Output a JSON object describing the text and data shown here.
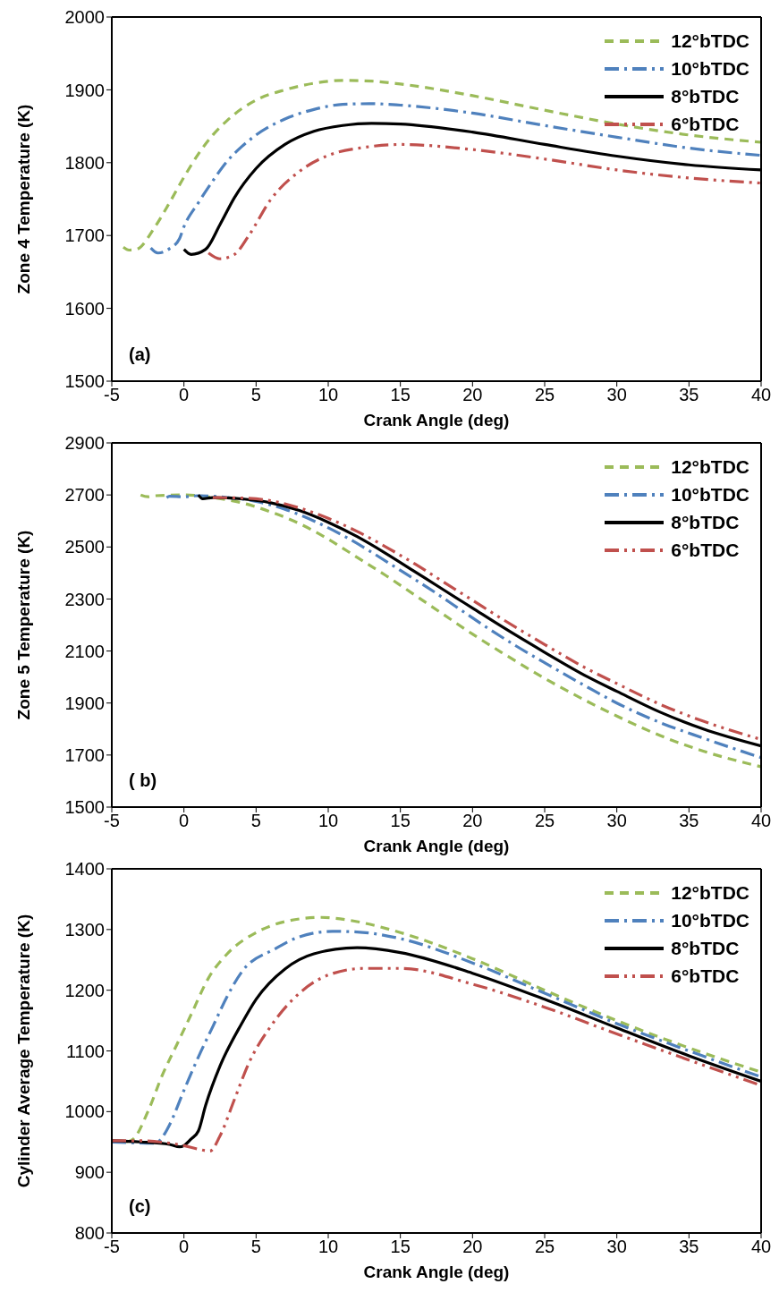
{
  "chart_data": [
    {
      "type": "line",
      "xlabel": "Crank Angle (deg)",
      "ylabel": "Zone 4 Temperature (K)",
      "xlim": [
        -5,
        40
      ],
      "xticks": [
        -5,
        0,
        5,
        10,
        15,
        20,
        25,
        30,
        35,
        40
      ],
      "ylim": [
        1500,
        2000
      ],
      "yticks": [
        1500,
        1600,
        1700,
        1800,
        1900,
        2000
      ],
      "legend": "top right",
      "marker": "none",
      "annotations": [
        "(a)"
      ],
      "series": [
        {
          "name": "12°bTDC",
          "color": "#9bbb59",
          "line_style": "dashed",
          "x": [
            -4.2,
            -3.8,
            -3.3,
            -2,
            -1,
            0,
            1,
            2,
            3,
            4,
            5,
            7,
            9,
            11,
            13,
            15,
            20,
            25,
            30,
            35,
            40
          ],
          "values": [
            1684,
            1680,
            1681,
            1712,
            1745,
            1780,
            1812,
            1838,
            1858,
            1874,
            1886,
            1900,
            1909,
            1913,
            1912,
            1908,
            1892,
            1872,
            1853,
            1838,
            1828
          ]
        },
        {
          "name": "10°bTDC",
          "color": "#4f81bd",
          "line_style": "dashdot",
          "x": [
            -2.3,
            -1.8,
            -1,
            -0.3,
            0,
            1,
            2,
            3,
            4,
            5,
            7,
            9,
            11,
            13,
            15,
            20,
            25,
            30,
            35,
            40
          ],
          "values": [
            1683,
            1676,
            1682,
            1696,
            1712,
            1745,
            1775,
            1802,
            1822,
            1838,
            1860,
            1873,
            1880,
            1881,
            1879,
            1868,
            1851,
            1835,
            1820,
            1810
          ]
        },
        {
          "name": "8°bTDC",
          "color": "#000000",
          "line_style": "solid",
          "x": [
            0,
            0.5,
            1.5,
            2.5,
            3.5,
            5,
            7,
            9,
            11,
            13,
            15,
            20,
            25,
            30,
            35,
            40
          ],
          "values": [
            1681,
            1674,
            1681,
            1715,
            1752,
            1792,
            1825,
            1843,
            1851,
            1854,
            1853,
            1842,
            1825,
            1809,
            1797,
            1790
          ]
        },
        {
          "name": "6°bTDC",
          "color": "#c0504d",
          "line_style": "dashdotdot",
          "x": [
            1.7,
            2.5,
            3.5,
            4.5,
            6,
            8,
            10,
            12.5,
            15,
            20,
            25,
            30,
            35,
            40
          ],
          "values": [
            1676,
            1668,
            1674,
            1700,
            1749,
            1788,
            1810,
            1821,
            1825,
            1818,
            1805,
            1790,
            1779,
            1772
          ]
        }
      ]
    },
    {
      "type": "line",
      "xlabel": "Crank Angle (deg)",
      "ylabel": "Zone 5 Temperature (K)",
      "xlim": [
        -5,
        40
      ],
      "xticks": [
        -5,
        0,
        5,
        10,
        15,
        20,
        25,
        30,
        35,
        40
      ],
      "ylim": [
        1500,
        2900
      ],
      "yticks": [
        1500,
        1700,
        1900,
        2100,
        2300,
        2500,
        2700,
        2900
      ],
      "legend": "top right",
      "marker": "none",
      "annotations": [
        "( b)"
      ],
      "series": [
        {
          "name": "12°bTDC",
          "color": "#9bbb59",
          "line_style": "dashed",
          "x": [
            -3,
            -2.5,
            -2,
            0,
            2,
            4,
            6,
            8,
            10,
            12,
            14,
            16,
            18,
            20,
            22,
            25,
            28,
            30,
            33,
            36,
            40
          ],
          "values": [
            2700,
            2693,
            2697,
            2700,
            2690,
            2670,
            2635,
            2590,
            2530,
            2460,
            2390,
            2315,
            2240,
            2165,
            2095,
            1995,
            1905,
            1850,
            1775,
            1715,
            1655
          ]
        },
        {
          "name": "10°bTDC",
          "color": "#4f81bd",
          "line_style": "dashdot",
          "x": [
            -1.2,
            -1,
            0,
            1,
            3,
            5,
            7,
            9,
            11,
            13,
            15,
            17,
            19,
            21,
            23,
            25,
            28,
            30,
            33,
            36,
            40
          ],
          "values": [
            2690,
            2695,
            2693,
            2697,
            2690,
            2675,
            2645,
            2600,
            2545,
            2480,
            2410,
            2340,
            2265,
            2190,
            2120,
            2055,
            1960,
            1900,
            1825,
            1765,
            1690
          ]
        },
        {
          "name": "8°bTDC",
          "color": "#000000",
          "line_style": "solid",
          "x": [
            1,
            1.3,
            2,
            4,
            6,
            8,
            10,
            12,
            14,
            16,
            18,
            20,
            22,
            25,
            28,
            30,
            33,
            36,
            40
          ],
          "values": [
            2700,
            2685,
            2690,
            2685,
            2670,
            2640,
            2595,
            2540,
            2475,
            2405,
            2335,
            2265,
            2195,
            2095,
            2000,
            1945,
            1865,
            1800,
            1735
          ]
        },
        {
          "name": "6°bTDC",
          "color": "#c0504d",
          "line_style": "dashdotdot",
          "x": [
            2,
            4,
            6,
            8,
            10,
            12,
            14,
            16,
            18,
            20,
            22,
            25,
            28,
            30,
            33,
            36,
            40
          ],
          "values": [
            2690,
            2688,
            2678,
            2650,
            2610,
            2560,
            2500,
            2435,
            2365,
            2295,
            2225,
            2125,
            2030,
            1975,
            1895,
            1830,
            1760
          ]
        }
      ]
    },
    {
      "type": "line",
      "xlabel": "Crank Angle (deg)",
      "ylabel": "Cylinder Average Temperature (K)",
      "xlim": [
        -5,
        40
      ],
      "xticks": [
        -5,
        0,
        5,
        10,
        15,
        20,
        25,
        30,
        35,
        40
      ],
      "ylim": [
        800,
        1400
      ],
      "yticks": [
        800,
        900,
        1000,
        1100,
        1200,
        1300,
        1400
      ],
      "legend": "top right",
      "marker": "none",
      "annotations": [
        "(c)"
      ],
      "series": [
        {
          "name": "12°bTDC",
          "color": "#9bbb59",
          "line_style": "dashed",
          "x": [
            -4,
            -3.5,
            -2.5,
            -1.5,
            -0.5,
            0.5,
            1.7,
            3,
            5,
            7,
            9.5,
            12,
            15,
            20,
            25,
            30,
            35,
            40
          ],
          "values": [
            950,
            955,
            1000,
            1060,
            1110,
            1160,
            1220,
            1260,
            1295,
            1313,
            1320,
            1313,
            1295,
            1252,
            1200,
            1150,
            1105,
            1065
          ]
        },
        {
          "name": "10°bTDC",
          "color": "#4f81bd",
          "line_style": "dashdot",
          "x": [
            -5,
            -2,
            -1.3,
            -1,
            0,
            1,
            2,
            3,
            4,
            6.3,
            8,
            10.3,
            12,
            15,
            20,
            25,
            30,
            35,
            40
          ],
          "values": [
            950,
            948,
            965,
            978,
            1035,
            1090,
            1140,
            1190,
            1230,
            1268,
            1288,
            1297,
            1296,
            1285,
            1245,
            1195,
            1145,
            1100,
            1057
          ]
        },
        {
          "name": "8°bTDC",
          "color": "#000000",
          "line_style": "solid",
          "x": [
            -5,
            -3,
            -1,
            -0.3,
            0,
            0.5,
            1,
            1.5,
            2.5,
            4,
            5,
            7,
            9,
            12,
            15,
            20,
            25,
            30,
            35,
            40
          ],
          "values": [
            952,
            950,
            946,
            942,
            944,
            955,
            968,
            1010,
            1075,
            1145,
            1185,
            1235,
            1260,
            1270,
            1262,
            1228,
            1185,
            1138,
            1092,
            1050
          ]
        },
        {
          "name": "6°bTDC",
          "color": "#c0504d",
          "line_style": "dashdotdot",
          "x": [
            -5,
            -3,
            -1,
            0,
            1,
            1.8,
            2.5,
            3.5,
            4.5,
            6,
            8,
            10,
            12.5,
            15,
            20,
            25,
            30,
            35,
            40
          ],
          "values": [
            952,
            952,
            948,
            944,
            938,
            935,
            960,
            1020,
            1080,
            1140,
            1195,
            1225,
            1236,
            1236,
            1210,
            1172,
            1128,
            1085,
            1043
          ]
        }
      ]
    }
  ]
}
